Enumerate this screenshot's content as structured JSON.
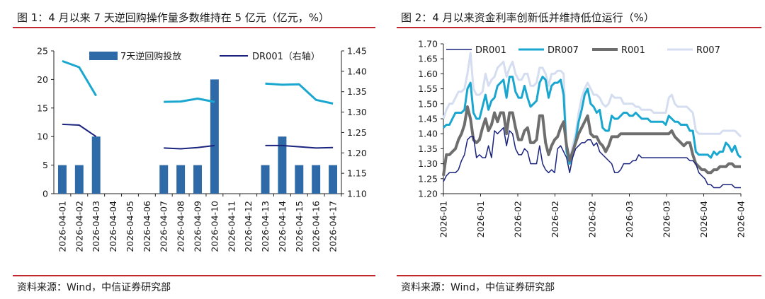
{
  "chart1": {
    "title": "图 1：4 月以来 7 天逆回购操作量多数维持在 5 亿元（亿元，%）",
    "source": "资料来源：Wind，中信证券研究部",
    "chart_data": {
      "type": "bar",
      "categories": [
        "2026-04-01",
        "2026-04-02",
        "2026-04-03",
        "2026-04-04",
        "2026-04-05",
        "2026-04-06",
        "2026-04-07",
        "2026-04-08",
        "2026-04-09",
        "2026-04-10",
        "2026-04-11",
        "2026-04-12",
        "2026-04-13",
        "2026-04-14",
        "2026-04-15",
        "2026-04-16",
        "2026-04-17"
      ],
      "series": [
        {
          "name": "7天逆回购投放",
          "type": "bar",
          "axis": "left",
          "color": "#2e6aa8",
          "values": [
            5,
            5,
            10,
            null,
            null,
            null,
            5,
            5,
            5,
            20,
            null,
            null,
            5,
            10,
            5,
            5,
            5
          ]
        },
        {
          "name": "DR001（右轴）",
          "type": "line",
          "axis": "right",
          "color": "#1a237e",
          "values": [
            1.27,
            1.268,
            1.24,
            null,
            null,
            null,
            1.212,
            1.21,
            1.213,
            1.218,
            null,
            null,
            1.218,
            1.218,
            1.215,
            1.212,
            1.213
          ]
        },
        {
          "name": "",
          "type": "line",
          "axis": "right",
          "color": "#1aa7cf",
          "legend": false,
          "values": [
            1.425,
            1.41,
            1.34,
            null,
            null,
            null,
            1.325,
            1.326,
            1.333,
            1.325,
            null,
            null,
            1.37,
            1.367,
            1.368,
            1.33,
            1.321
          ]
        }
      ],
      "yleft": {
        "min": 0,
        "max": 25,
        "ticks": [
          "0",
          "5",
          "10",
          "15",
          "20",
          "25"
        ]
      },
      "yright": {
        "min": 1.1,
        "max": 1.45,
        "ticks": [
          "1.10",
          "1.15",
          "1.20",
          "1.25",
          "1.30",
          "1.35",
          "1.40",
          "1.45"
        ]
      }
    }
  },
  "chart2": {
    "title": "图 2：4 月以来资金利率创新低并维持低位运行（%）",
    "source": "资料来源：Wind，中信证券研究部",
    "chart_data": {
      "type": "line",
      "x_tick_labels": [
        "2026-01",
        "2026-01",
        "2026-02",
        "2026-02",
        "2026-02",
        "2026-03",
        "2026-03",
        "2026-04",
        "2026-04"
      ],
      "y": {
        "min": 1.2,
        "max": 1.7,
        "ticks": [
          "1.20",
          "1.25",
          "1.30",
          "1.35",
          "1.40",
          "1.45",
          "1.50",
          "1.55",
          "1.60",
          "1.65",
          "1.70"
        ]
      },
      "series": [
        {
          "name": "DR001",
          "color": "#1a237e",
          "width": 1.5,
          "values": [
            1.24,
            1.26,
            1.27,
            1.27,
            1.27,
            1.28,
            1.31,
            1.33,
            1.38,
            1.39,
            1.39,
            1.32,
            1.33,
            1.32,
            1.32,
            1.36,
            1.32,
            1.41,
            1.4,
            1.41,
            1.42,
            1.36,
            1.41,
            1.4,
            1.35,
            1.33,
            1.33,
            1.35,
            1.34,
            1.3,
            1.3,
            1.3,
            1.36,
            1.3,
            1.28,
            1.27,
            1.28,
            1.27,
            1.35,
            1.36,
            1.34,
            1.32,
            1.27,
            1.32,
            1.35,
            1.36,
            1.37,
            1.37,
            1.38,
            1.38,
            1.36,
            1.37,
            1.34,
            1.33,
            1.32,
            1.31,
            1.3,
            1.27,
            1.27,
            1.28,
            1.3,
            1.3,
            1.3,
            1.31,
            1.31,
            1.33,
            1.32,
            1.32,
            1.32,
            1.32,
            1.32,
            1.32,
            1.32,
            1.32,
            1.32,
            1.32,
            1.32,
            1.32,
            1.32,
            1.32,
            1.32,
            1.32,
            1.31,
            1.31,
            1.3,
            1.27,
            1.26,
            1.25,
            1.23,
            1.23,
            1.22,
            1.22,
            1.22,
            1.23,
            1.23,
            1.23,
            1.23,
            1.22,
            1.22,
            1.22
          ]
        },
        {
          "name": "DR007",
          "color": "#1aa7cf",
          "width": 3,
          "values": [
            1.42,
            1.43,
            1.43,
            1.45,
            1.47,
            1.47,
            1.47,
            1.48,
            1.55,
            1.57,
            1.47,
            1.45,
            1.45,
            1.49,
            1.53,
            1.48,
            1.51,
            1.52,
            1.56,
            1.57,
            1.58,
            1.52,
            1.59,
            1.59,
            1.54,
            1.52,
            1.52,
            1.56,
            1.52,
            1.49,
            1.5,
            1.51,
            1.57,
            1.59,
            1.58,
            1.52,
            1.56,
            1.57,
            1.57,
            1.58,
            1.53,
            1.34,
            1.3,
            1.34,
            1.38,
            1.44,
            1.48,
            1.53,
            1.55,
            1.5,
            1.49,
            1.47,
            1.48,
            1.42,
            1.41,
            1.41,
            1.46,
            1.45,
            1.45,
            1.46,
            1.47,
            1.47,
            1.46,
            1.46,
            1.47,
            1.46,
            1.45,
            1.45,
            1.45,
            1.44,
            1.44,
            1.44,
            1.44,
            1.44,
            1.43,
            1.46,
            1.45,
            1.44,
            1.44,
            1.43,
            1.43,
            1.43,
            1.41,
            1.41,
            1.34,
            1.33,
            1.33,
            1.33,
            1.33,
            1.32,
            1.34,
            1.33,
            1.34,
            1.34,
            1.37,
            1.36,
            1.34,
            1.36,
            1.33,
            1.32
          ]
        },
        {
          "name": "R001",
          "color": "#6e6e6e",
          "width": 4,
          "values": [
            1.26,
            1.33,
            1.33,
            1.34,
            1.35,
            1.38,
            1.4,
            1.43,
            1.49,
            1.45,
            1.38,
            1.37,
            1.38,
            1.42,
            1.45,
            1.41,
            1.43,
            1.47,
            1.44,
            1.47,
            1.47,
            1.4,
            1.47,
            1.47,
            1.42,
            1.38,
            1.38,
            1.41,
            1.42,
            1.37,
            1.37,
            1.38,
            1.46,
            1.46,
            1.37,
            1.33,
            1.36,
            1.38,
            1.39,
            1.42,
            1.44,
            1.36,
            1.31,
            1.34,
            1.37,
            1.4,
            1.42,
            1.44,
            1.46,
            1.4,
            1.39,
            1.39,
            1.37,
            1.36,
            1.34,
            1.36,
            1.39,
            1.39,
            1.39,
            1.4,
            1.4,
            1.4,
            1.4,
            1.4,
            1.4,
            1.4,
            1.4,
            1.4,
            1.4,
            1.4,
            1.4,
            1.4,
            1.4,
            1.4,
            1.4,
            1.4,
            1.41,
            1.39,
            1.38,
            1.37,
            1.36,
            1.37,
            1.37,
            1.33,
            1.3,
            1.29,
            1.28,
            1.28,
            1.27,
            1.27,
            1.28,
            1.28,
            1.29,
            1.29,
            1.29,
            1.3,
            1.3,
            1.29,
            1.29,
            1.29
          ]
        },
        {
          "name": "R007",
          "color": "#d5ddf0",
          "width": 3,
          "values": [
            1.45,
            1.48,
            1.5,
            1.5,
            1.52,
            1.54,
            1.54,
            1.55,
            1.6,
            1.67,
            1.55,
            1.53,
            1.53,
            1.54,
            1.6,
            1.56,
            1.58,
            1.59,
            1.62,
            1.63,
            1.64,
            1.59,
            1.62,
            1.64,
            1.6,
            1.58,
            1.58,
            1.6,
            1.6,
            1.56,
            1.56,
            1.57,
            1.62,
            1.62,
            1.6,
            1.56,
            1.6,
            1.6,
            1.61,
            1.61,
            1.6,
            1.34,
            1.31,
            1.36,
            1.4,
            1.47,
            1.52,
            1.55,
            1.57,
            1.55,
            1.53,
            1.53,
            1.52,
            1.5,
            1.49,
            1.5,
            1.53,
            1.52,
            1.52,
            1.52,
            1.5,
            1.5,
            1.5,
            1.5,
            1.49,
            1.49,
            1.48,
            1.48,
            1.48,
            1.48,
            1.47,
            1.47,
            1.47,
            1.47,
            1.47,
            1.52,
            1.53,
            1.5,
            1.49,
            1.49,
            1.49,
            1.49,
            1.48,
            1.47,
            1.41,
            1.4,
            1.4,
            1.4,
            1.4,
            1.4,
            1.4,
            1.4,
            1.4,
            1.41,
            1.41,
            1.41,
            1.41,
            1.41,
            1.4,
            1.39
          ]
        }
      ]
    }
  }
}
